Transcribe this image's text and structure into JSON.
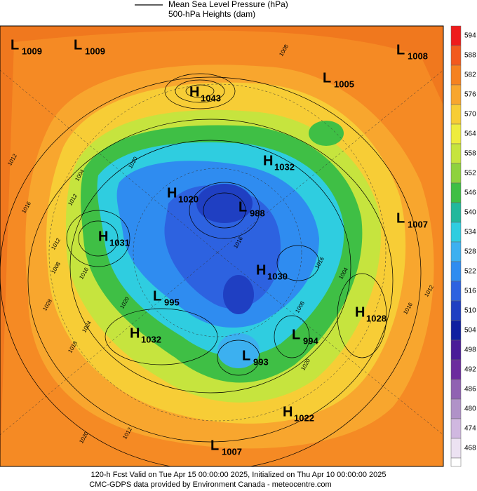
{
  "legend": {
    "items": [
      "Mean Sea Level Pressure (hPa)",
      "500-hPa Heights (dam)"
    ]
  },
  "centers": [
    {
      "type": "L",
      "value": "1009"
    },
    {
      "type": "L",
      "value": "1009"
    },
    {
      "type": "L",
      "value": "1008"
    },
    {
      "type": "L",
      "value": "1005"
    },
    {
      "type": "H",
      "value": "1043"
    },
    {
      "type": "H",
      "value": "1032"
    },
    {
      "type": "H",
      "value": "1020"
    },
    {
      "type": "L",
      "value": "988"
    },
    {
      "type": "L",
      "value": "1007"
    },
    {
      "type": "H",
      "value": "1031"
    },
    {
      "type": "H",
      "value": "1030"
    },
    {
      "type": "L",
      "value": "995"
    },
    {
      "type": "H",
      "value": "1028"
    },
    {
      "type": "H",
      "value": "1032"
    },
    {
      "type": "L",
      "value": "994"
    },
    {
      "type": "L",
      "value": "993"
    },
    {
      "type": "H",
      "value": "1022"
    },
    {
      "type": "L",
      "value": "1007"
    }
  ],
  "isobar_labels": [
    "1008",
    "1012",
    "1016",
    "1012",
    "1004",
    "1020",
    "1012",
    "1008",
    "1016",
    "1020",
    "1028",
    "1024",
    "1016",
    "1012",
    "1020",
    "1016",
    "1004",
    "1016",
    "1008",
    "1020",
    "1016",
    "1012"
  ],
  "colorbar": {
    "ticks": [
      "594",
      "588",
      "582",
      "576",
      "570",
      "564",
      "558",
      "552",
      "546",
      "540",
      "534",
      "528",
      "522",
      "516",
      "510",
      "504",
      "498",
      "492",
      "486",
      "480",
      "474",
      "468"
    ],
    "colors": [
      "#ee1c1c",
      "#f25a1e",
      "#f58220",
      "#f8a62e",
      "#f7cd36",
      "#eeec3e",
      "#c6e43e",
      "#8ed23e",
      "#3fbf45",
      "#22b89c",
      "#2fcde0",
      "#3cb0f0",
      "#2f8cf0",
      "#2d62e0",
      "#1f3fc2",
      "#1020a0",
      "#4a1c98",
      "#6c2c9e",
      "#9062b2",
      "#b092c8",
      "#d0b8e0",
      "#ece2f2"
    ]
  },
  "footer": [
    "120-h Fcst Valid on Tue Apr 15 00:00:00 2025, Initialized on Thu Apr 10 00:00:00 2025",
    "CMC-GDPS data provided by Environment Canada - meteocentre.com"
  ]
}
